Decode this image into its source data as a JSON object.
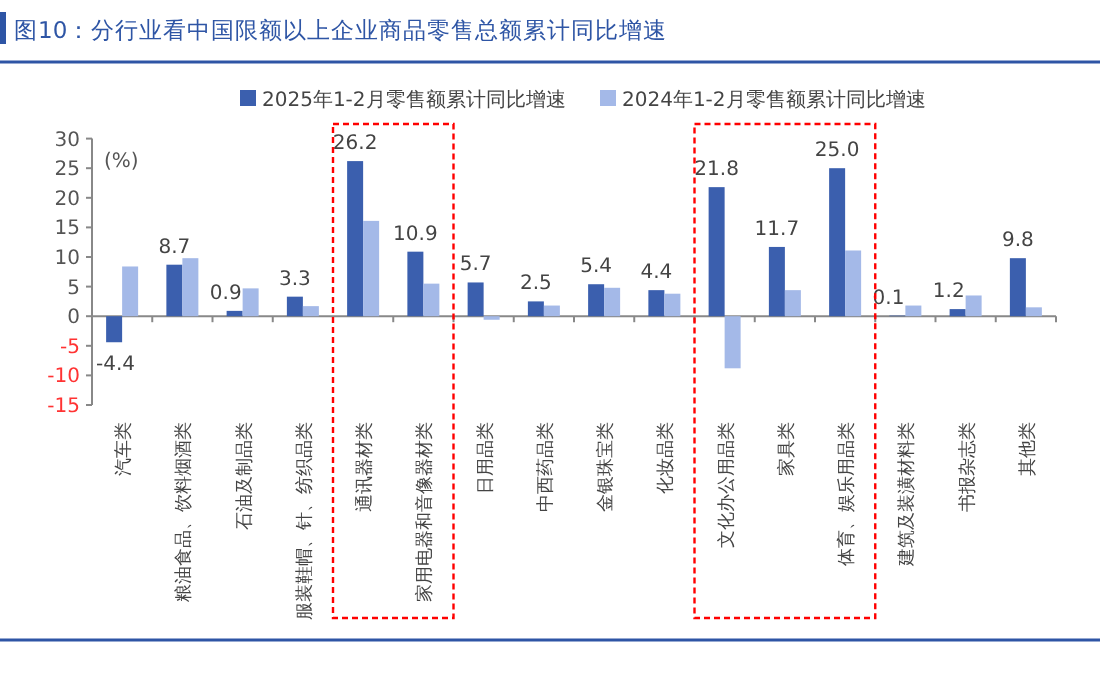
{
  "chart_data": {
    "type": "bar",
    "title": "图10：分行业看中国限额以上企业商品零售总额累计同比增速",
    "categories": [
      "汽车类",
      "粮油食品、饮料烟酒类",
      "石油及制品类",
      "服装鞋帽、针、纺织品类",
      "通讯器材类",
      "家用电器和音像器材类",
      "日用品类",
      "中西药品类",
      "金银珠宝类",
      "化妆品类",
      "文化办公用品类",
      "家具类",
      "体育、娱乐用品类",
      "建筑及装潢材料类",
      "书报杂志类",
      "其他类"
    ],
    "series": [
      {
        "name": "2025年1-2月零售额累计同比增速",
        "color": "#3b5fae",
        "values": [
          -4.4,
          8.7,
          0.9,
          3.3,
          26.2,
          10.9,
          5.7,
          2.5,
          5.4,
          4.4,
          21.8,
          11.7,
          25.0,
          0.1,
          1.2,
          9.8
        ],
        "value_labels": [
          "-4.4",
          "8.7",
          "0.9",
          "3.3",
          "26.2",
          "10.9",
          "5.7",
          "2.5",
          "5.4",
          "4.4",
          "21.8",
          "11.7",
          "25.0",
          "0.1",
          "1.2",
          "9.8"
        ]
      },
      {
        "name": "2024年1-2月零售额累计同比增速",
        "color": "#a4b9e8",
        "values": [
          8.4,
          9.8,
          4.7,
          1.7,
          16.1,
          5.5,
          -0.6,
          1.8,
          4.8,
          3.8,
          -8.8,
          4.4,
          11.1,
          1.8,
          3.5,
          1.5
        ]
      }
    ],
    "ylim": [
      -15,
      30
    ],
    "yticks": [
      -15,
      -10,
      -5,
      0,
      5,
      10,
      15,
      20,
      25,
      30
    ],
    "legend": "top",
    "annotations": [
      "(%)"
    ]
  }
}
